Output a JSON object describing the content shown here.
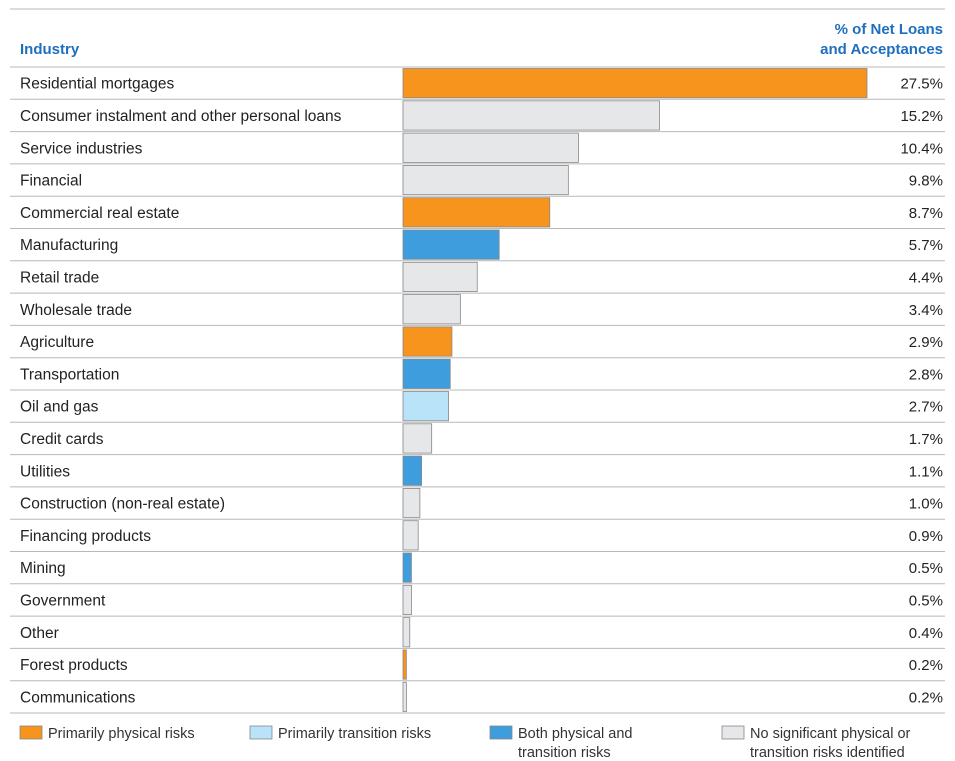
{
  "chart_data": {
    "type": "bar",
    "orientation": "horizontal",
    "column_headers": {
      "industry": "Industry",
      "value_line1": "% of Net Loans",
      "value_line2": "and Acceptances"
    },
    "unit": "%",
    "xlim": [
      0,
      27.5
    ],
    "categories": [
      "Residential mortgages",
      "Consumer instalment and other personal loans",
      "Service industries",
      "Financial",
      "Commercial real estate",
      "Manufacturing",
      "Retail trade",
      "Wholesale trade",
      "Agriculture",
      "Transportation",
      "Oil and gas",
      "Credit cards",
      "Utilities",
      "Construction (non-real estate)",
      "Financing products",
      "Mining",
      "Government",
      "Other",
      "Forest products",
      "Communications"
    ],
    "values": [
      27.5,
      15.2,
      10.4,
      9.8,
      8.7,
      5.7,
      4.4,
      3.4,
      2.9,
      2.8,
      2.7,
      1.7,
      1.1,
      1.0,
      0.9,
      0.5,
      0.5,
      0.4,
      0.2,
      0.2
    ],
    "value_labels": [
      "27.5%",
      "15.2%",
      "10.4%",
      "9.8%",
      "8.7%",
      "5.7%",
      "4.4%",
      "3.4%",
      "2.9%",
      "2.8%",
      "2.7%",
      "1.7%",
      "1.1%",
      "1.0%",
      "0.9%",
      "0.5%",
      "0.5%",
      "0.4%",
      "0.2%",
      "0.2%"
    ],
    "risk": [
      "physical",
      "none",
      "none",
      "none",
      "physical",
      "both",
      "none",
      "none",
      "physical",
      "both",
      "transition",
      "none",
      "both",
      "none",
      "none",
      "both",
      "none",
      "none",
      "physical",
      "none"
    ],
    "legend": [
      {
        "key": "physical",
        "lines": [
          "Primarily physical risks"
        ],
        "color": "#f7941d"
      },
      {
        "key": "transition",
        "lines": [
          "Primarily transition risks"
        ],
        "color": "#b9e3f9"
      },
      {
        "key": "both",
        "lines": [
          "Both physical and",
          "transition risks"
        ],
        "color": "#3e9ddc"
      },
      {
        "key": "none",
        "lines": [
          "No significant physical or",
          "transition risks identified"
        ],
        "color": "#e6e7e8"
      }
    ],
    "legend_position": "bottom",
    "colors": {
      "header": "#1f6fbf",
      "row_divider": "#b8b8b8",
      "bar_outline": "#888888"
    }
  }
}
